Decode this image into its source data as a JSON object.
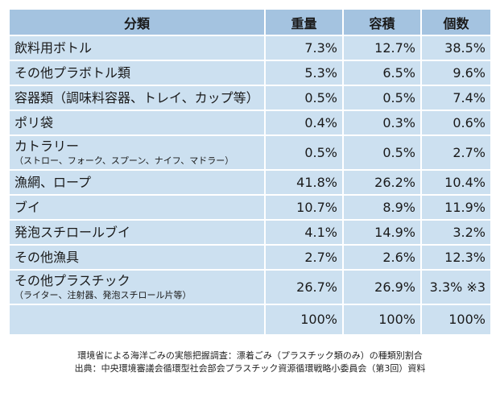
{
  "table": {
    "headers": [
      "分類",
      "重量",
      "容積",
      "個数"
    ],
    "rows": [
      {
        "name": "飲料用ボトル",
        "sub": "",
        "weight": "7.3%",
        "volume": "12.7%",
        "count": "38.5%"
      },
      {
        "name": "その他プラボトル類",
        "sub": "",
        "weight": "5.3%",
        "volume": "6.5%",
        "count": "9.6%"
      },
      {
        "name": "容器類（調味料容器、トレイ、カップ等）",
        "sub": "",
        "weight": "0.5%",
        "volume": "0.5%",
        "count": "7.4%"
      },
      {
        "name": "ポリ袋",
        "sub": "",
        "weight": "0.4%",
        "volume": "0.3%",
        "count": "0.6%"
      },
      {
        "name": "カトラリー",
        "sub": "（ストロー、フォーク、スプーン、ナイフ、マドラー）",
        "weight": "0.5%",
        "volume": "0.5%",
        "count": "2.7%"
      },
      {
        "name": "漁網、ロープ",
        "sub": "",
        "weight": "41.8%",
        "volume": "26.2%",
        "count": "10.4%"
      },
      {
        "name": "ブイ",
        "sub": "",
        "weight": "10.7%",
        "volume": "8.9%",
        "count": "11.9%"
      },
      {
        "name": "発泡スチロールブイ",
        "sub": "",
        "weight": "4.1%",
        "volume": "14.9%",
        "count": "3.2%"
      },
      {
        "name": "その他漁具",
        "sub": "",
        "weight": "2.7%",
        "volume": "2.6%",
        "count": "12.3%"
      },
      {
        "name": "その他プラスチック",
        "sub": "（ライター、注射器、発泡スチロール片等）",
        "weight": "26.7%",
        "volume": "26.9%",
        "count": "3.3% ※3"
      }
    ],
    "total": {
      "name": "",
      "weight": "100%",
      "volume": "100%",
      "count": "100%"
    }
  },
  "caption": {
    "line1": "環境省による海洋ごみの実態把握調査：漂着ごみ（プラスチック類のみ）の種類別割合",
    "line2": "出典：中央環境審議会循環型社会部会プラスチック資源循環戦略小委員会（第3回）資料"
  },
  "colors": {
    "header_bg": "#a4c3e0",
    "cell_bg": "#cce0f0",
    "border": "#ffffff"
  }
}
